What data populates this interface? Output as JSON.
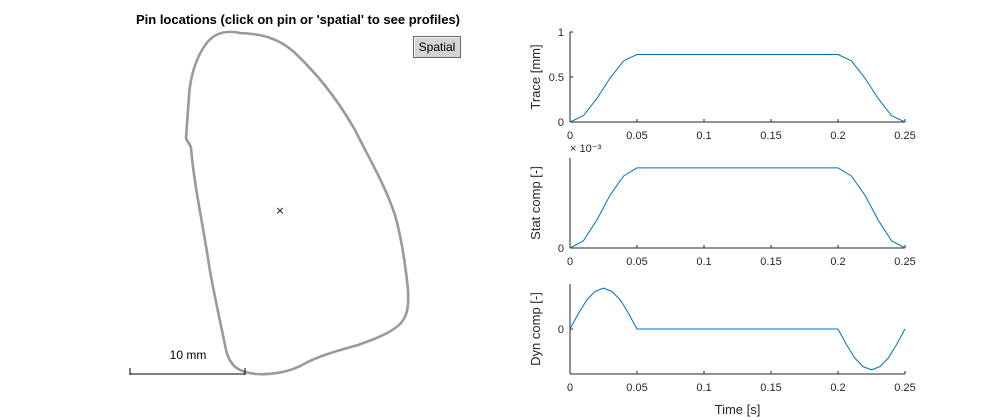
{
  "figure": {
    "title": "Pin locations (click on pin or 'spatial' to see profiles)",
    "spatial_button": "Spatial",
    "scale_bar_label": "10 mm",
    "pin_marker": "×",
    "outline_color": "#9a9a9a"
  },
  "chart_data": [
    {
      "type": "line",
      "ylabel": "Trace [mm]",
      "xlabel": "",
      "xlim": [
        0,
        0.25
      ],
      "ylim": [
        0,
        1
      ],
      "x_ticks": [
        "0",
        "0.05",
        "0.1",
        "0.15",
        "0.2",
        "0.25"
      ],
      "y_ticks": [
        "0",
        "0.5",
        "1"
      ],
      "y_exponent": "",
      "color": "#0072bd",
      "series": [
        {
          "x": [
            0,
            0.01,
            0.02,
            0.03,
            0.04,
            0.05,
            0.1,
            0.15,
            0.2,
            0.21,
            0.22,
            0.23,
            0.24,
            0.25
          ],
          "values": [
            0,
            0.07,
            0.26,
            0.49,
            0.68,
            0.75,
            0.75,
            0.75,
            0.75,
            0.68,
            0.49,
            0.26,
            0.07,
            0
          ]
        }
      ]
    },
    {
      "type": "line",
      "ylabel": "Stat comp [-]",
      "xlabel": "",
      "xlim": [
        0,
        0.25
      ],
      "ylim": [
        0,
        1
      ],
      "x_ticks": [
        "0",
        "0.05",
        "0.1",
        "0.15",
        "0.2",
        "0.25"
      ],
      "y_ticks": [
        "0"
      ],
      "y_exponent": "× 10⁻³",
      "color": "#0072bd",
      "series": [
        {
          "x": [
            0,
            0.01,
            0.02,
            0.03,
            0.04,
            0.05,
            0.1,
            0.15,
            0.2,
            0.21,
            0.22,
            0.23,
            0.24,
            0.25
          ],
          "values": [
            0,
            0.08,
            0.31,
            0.59,
            0.8,
            0.89,
            0.89,
            0.89,
            0.89,
            0.8,
            0.59,
            0.31,
            0.08,
            0
          ]
        }
      ]
    },
    {
      "type": "line",
      "ylabel": "Dyn comp [-]",
      "xlabel": "Time [s]",
      "xlim": [
        0,
        0.25
      ],
      "ylim": [
        -1.1,
        1.1
      ],
      "x_ticks": [
        "0",
        "0.05",
        "0.1",
        "0.15",
        "0.2",
        "0.25"
      ],
      "y_ticks": [
        "0"
      ],
      "y_exponent": "",
      "color": "#0072bd",
      "series": [
        {
          "x": [
            0,
            0.00625,
            0.0125,
            0.01875,
            0.025,
            0.03125,
            0.0375,
            0.04375,
            0.05,
            0.1,
            0.15,
            0.2,
            0.20625,
            0.2125,
            0.21875,
            0.225,
            0.23125,
            0.2375,
            0.24375,
            0.25
          ],
          "values": [
            0,
            0.38,
            0.71,
            0.92,
            1,
            0.92,
            0.71,
            0.38,
            0,
            0,
            0,
            0,
            -0.38,
            -0.71,
            -0.92,
            -1,
            -0.92,
            -0.71,
            -0.38,
            0
          ]
        }
      ]
    }
  ]
}
